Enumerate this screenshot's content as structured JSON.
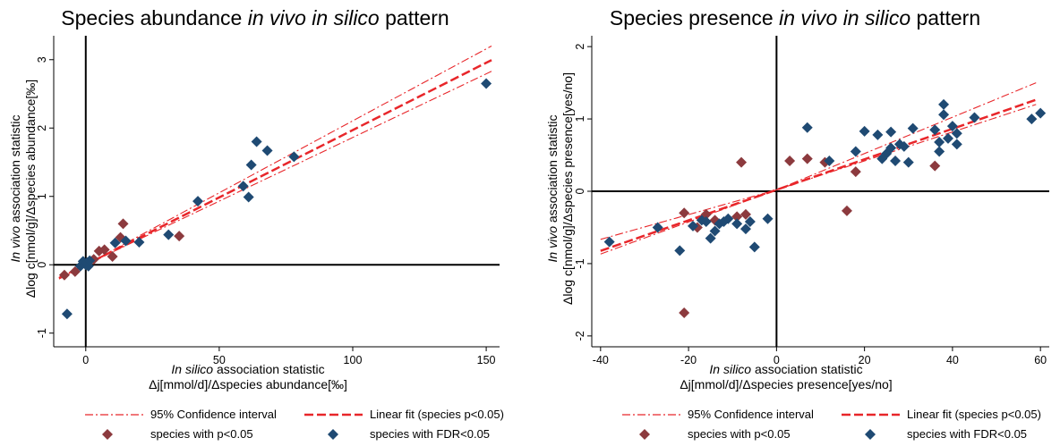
{
  "charts": [
    {
      "title_parts": [
        {
          "text": "Species abundance ",
          "italic": false
        },
        {
          "text": "in vivo in silico",
          "italic": true
        },
        {
          "text": " pattern",
          "italic": false
        }
      ],
      "xlabel_line1_parts": [
        {
          "text": "In silico",
          "italic": true
        },
        {
          "text": " association statistic",
          "italic": false
        }
      ],
      "xlabel_line2": "Δj[mmol/d]/Δspecies abundance[‰]",
      "ylabel_line1_parts": [
        {
          "text": "In vivo",
          "italic": true
        },
        {
          "text": " association statistic",
          "italic": false
        }
      ],
      "ylabel_line2": "Δlog c[nmol/g]/Δspecies abundance[‰]"
    },
    {
      "title_parts": [
        {
          "text": "Species presence ",
          "italic": false
        },
        {
          "text": "in vivo in silico",
          "italic": true
        },
        {
          "text": " pattern",
          "italic": false
        }
      ],
      "xlabel_line1_parts": [
        {
          "text": "In silico",
          "italic": true
        },
        {
          "text": " association statistic",
          "italic": false
        }
      ],
      "xlabel_line2": "Δj[mmol/d]/Δspecies presence[yes/no]",
      "ylabel_line1_parts": [
        {
          "text": "In vivo",
          "italic": true
        },
        {
          "text": " association statistic",
          "italic": false
        }
      ],
      "ylabel_line2": "Δlog c[nmol/g]/Δspecies presence[yes/no]"
    }
  ],
  "legend": {
    "ci": "95% Confidence interval",
    "fit": "Linear fit (species p<0.05)",
    "p05": "species with p<0.05",
    "fdr": "species with FDR<0.05"
  },
  "colors": {
    "p05": "#8c3a3e",
    "fdr": "#1f4a73",
    "fit": "#e8262a"
  },
  "chart_data": [
    {
      "type": "scatter",
      "title": "Species abundance in vivo in silico pattern",
      "xlabel": "In silico association statistic Δj[mmol/d]/Δspecies abundance[‰]",
      "ylabel": "In vivo association statistic Δlog c[nmol/g]/Δspecies abundance[‰]",
      "xlim": [
        -12,
        155
      ],
      "ylim": [
        -1.2,
        3.35
      ],
      "xticks": [
        0,
        50,
        100,
        150
      ],
      "yticks": [
        -1,
        0,
        1,
        2,
        3
      ],
      "legend_position": "bottom",
      "fit": {
        "slope": 0.0197,
        "intercept": 0.0,
        "ci_low_end": 2.83,
        "ci_high_end": 3.2
      },
      "series": [
        {
          "name": "species with p<0.05",
          "marker": "diamond",
          "points": [
            [
              -8,
              -0.15
            ],
            [
              -4,
              -0.1
            ],
            [
              3,
              0.08
            ],
            [
              5,
              0.2
            ],
            [
              7,
              0.22
            ],
            [
              10,
              0.12
            ],
            [
              13,
              0.4
            ],
            [
              14,
              0.6
            ],
            [
              35,
              0.42
            ]
          ]
        },
        {
          "name": "species with FDR<0.05",
          "marker": "diamond",
          "points": [
            [
              -7,
              -0.72
            ],
            [
              -2,
              -0.02
            ],
            [
              -1,
              0.05
            ],
            [
              0,
              0.0
            ],
            [
              0.5,
              0.03
            ],
            [
              1,
              -0.02
            ],
            [
              1.5,
              0.06
            ],
            [
              11,
              0.32
            ],
            [
              15,
              0.35
            ],
            [
              20,
              0.33
            ],
            [
              31,
              0.44
            ],
            [
              42,
              0.93
            ],
            [
              59,
              1.15
            ],
            [
              61,
              0.99
            ],
            [
              62,
              1.46
            ],
            [
              64,
              1.8
            ],
            [
              68,
              1.67
            ],
            [
              78,
              1.58
            ],
            [
              150,
              2.65
            ]
          ]
        }
      ]
    },
    {
      "type": "scatter",
      "title": "Species presence in vivo in silico pattern",
      "xlabel": "In silico association statistic Δj[mmol/d]/Δspecies presence[yes/no]",
      "ylabel": "In vivo association statistic Δlog c[nmol/g]/Δspecies presence[yes/no]",
      "xlim": [
        -42,
        62
      ],
      "ylim": [
        -2.15,
        2.15
      ],
      "xticks": [
        -40,
        -20,
        0,
        20,
        40,
        60
      ],
      "yticks": [
        -2,
        -1,
        0,
        1,
        2
      ],
      "legend_position": "bottom",
      "fit": {
        "slope": 0.0211,
        "intercept": 0.02,
        "ci_low_end": 1.2,
        "ci_high_end": 1.5
      },
      "series": [
        {
          "name": "species with p<0.05",
          "marker": "diamond",
          "points": [
            [
              -21,
              -0.3
            ],
            [
              -21,
              -1.68
            ],
            [
              -18,
              -0.5
            ],
            [
              -16,
              -0.32
            ],
            [
              -14,
              -0.4
            ],
            [
              -9,
              -0.35
            ],
            [
              -8,
              0.4
            ],
            [
              -7,
              -0.32
            ],
            [
              3,
              0.42
            ],
            [
              7,
              0.45
            ],
            [
              11,
              0.4
            ],
            [
              16,
              -0.27
            ],
            [
              18,
              0.27
            ],
            [
              36,
              0.35
            ]
          ]
        },
        {
          "name": "species with FDR<0.05",
          "marker": "diamond",
          "points": [
            [
              -38,
              -0.7
            ],
            [
              -27,
              -0.5
            ],
            [
              -22,
              -0.82
            ],
            [
              -19,
              -0.48
            ],
            [
              -17,
              -0.4
            ],
            [
              -16,
              -0.42
            ],
            [
              -15,
              -0.65
            ],
            [
              -14,
              -0.55
            ],
            [
              -13,
              -0.45
            ],
            [
              -12,
              -0.42
            ],
            [
              -11,
              -0.38
            ],
            [
              -9,
              -0.45
            ],
            [
              -7,
              -0.52
            ],
            [
              -6,
              -0.42
            ],
            [
              -5,
              -0.77
            ],
            [
              -2,
              -0.38
            ],
            [
              7,
              0.88
            ],
            [
              12,
              0.42
            ],
            [
              18,
              0.55
            ],
            [
              20,
              0.83
            ],
            [
              23,
              0.78
            ],
            [
              24,
              0.45
            ],
            [
              25,
              0.52
            ],
            [
              26,
              0.6
            ],
            [
              26,
              0.82
            ],
            [
              27,
              0.42
            ],
            [
              28,
              0.65
            ],
            [
              29,
              0.62
            ],
            [
              30,
              0.4
            ],
            [
              31,
              0.87
            ],
            [
              36,
              0.85
            ],
            [
              37,
              0.55
            ],
            [
              37,
              0.68
            ],
            [
              38,
              1.06
            ],
            [
              38,
              1.2
            ],
            [
              39,
              0.73
            ],
            [
              40,
              0.9
            ],
            [
              41,
              0.65
            ],
            [
              41,
              0.8
            ],
            [
              45,
              1.02
            ],
            [
              58,
              1.0
            ],
            [
              60,
              1.08
            ]
          ]
        }
      ]
    }
  ]
}
